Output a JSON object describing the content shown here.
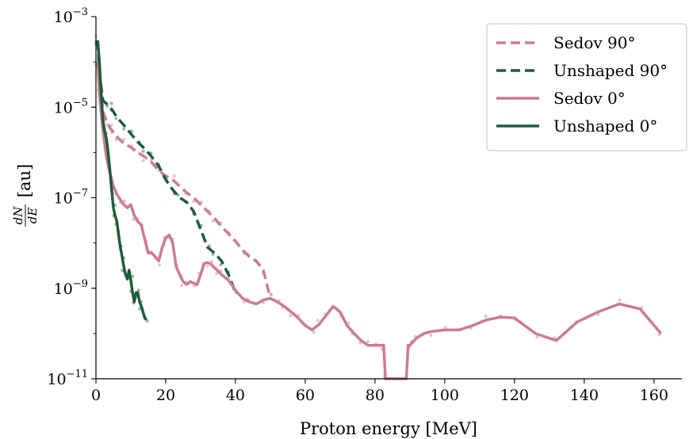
{
  "chart_data": {
    "type": "line",
    "xlabel": "Proton energy [MeV]",
    "ylabel": "dN/dE [au]",
    "ylabel_num": "dN",
    "ylabel_den": "dE",
    "ylabel_unit": "[au]",
    "xlim": [
      0,
      168
    ],
    "ylim": [
      1e-11,
      0.001
    ],
    "yscale": "log",
    "x_ticks": [
      0,
      20,
      40,
      60,
      80,
      100,
      120,
      140,
      160
    ],
    "x_tick_labels": [
      "0",
      "20",
      "40",
      "60",
      "80",
      "100",
      "120",
      "140",
      "160"
    ],
    "y_ticks": [
      1e-11,
      1e-09,
      1e-07,
      1e-05,
      0.001
    ],
    "y_tick_labels": [
      {
        "base": "10",
        "exp": "−11"
      },
      {
        "base": "10",
        "exp": "−9"
      },
      {
        "base": "10",
        "exp": "−7"
      },
      {
        "base": "10",
        "exp": "−5"
      },
      {
        "base": "10",
        "exp": "−3"
      }
    ],
    "legend_position": "top-right",
    "colors": {
      "sedov": "#cc7a93",
      "unshaped": "#1e5c3d"
    },
    "series": [
      {
        "name": "Sedov 90°",
        "style": "dashed",
        "color_key": "sedov",
        "x": [
          0.5,
          1,
          2,
          3,
          4,
          5,
          6,
          8,
          10,
          12,
          14,
          16,
          18,
          20,
          22,
          24,
          26,
          28,
          30,
          32,
          34,
          36,
          38,
          40,
          42,
          44,
          46,
          48,
          50
        ],
        "y": [
          0.0003,
          5e-05,
          8e-06,
          5e-06,
          3.5e-06,
          2.8e-06,
          2.2e-06,
          1.6e-06,
          1.3e-06,
          1e-06,
          8e-07,
          6e-07,
          4e-07,
          3e-07,
          2.5e-07,
          1.8e-07,
          1.3e-07,
          1e-07,
          7e-08,
          5e-08,
          3.5e-08,
          2.3e-08,
          1.6e-08,
          1.1e-08,
          7e-09,
          5e-09,
          4e-09,
          2.5e-09,
          6e-10
        ]
      },
      {
        "name": "Unshaped 90°",
        "style": "dashed",
        "color_key": "unshaped",
        "x": [
          0.5,
          1,
          2,
          3,
          4,
          5,
          6,
          8,
          10,
          12,
          14,
          16,
          18,
          20,
          22,
          24,
          26,
          28,
          30,
          32,
          34,
          36,
          38,
          40
        ],
        "y": [
          0.0003,
          6e-05,
          1.4e-05,
          1.2e-05,
          1e-05,
          8e-06,
          6e-06,
          4e-06,
          2.6e-06,
          1.7e-06,
          1.2e-06,
          8e-07,
          5e-07,
          2.5e-07,
          1.5e-07,
          1e-07,
          8e-08,
          5e-08,
          2e-08,
          8e-09,
          6e-09,
          4e-09,
          2e-09,
          8e-10
        ]
      },
      {
        "name": "Sedov 0°",
        "style": "solid",
        "color_key": "sedov",
        "x": [
          0.5,
          1,
          2,
          3,
          4,
          5,
          6,
          7,
          8,
          9,
          10,
          11,
          12,
          13,
          14,
          15,
          16,
          17,
          18,
          19,
          20,
          21,
          22,
          23,
          24,
          25,
          26,
          27,
          28,
          29,
          30,
          31,
          32,
          33,
          34,
          35,
          36,
          38,
          40,
          42,
          44,
          46,
          48,
          50,
          52,
          54,
          56,
          58,
          60,
          62,
          64,
          66,
          68,
          70,
          72,
          74,
          76,
          78,
          80,
          82,
          82.5,
          83,
          89,
          89.5,
          90,
          92,
          94,
          96,
          100,
          104,
          108,
          112,
          116,
          120,
          126,
          132,
          138,
          144,
          150,
          156,
          162
        ],
        "y": [
          0.0001,
          2e-05,
          3e-06,
          8e-07,
          3.5e-07,
          1.8e-07,
          1.2e-07,
          9e-08,
          7e-08,
          6e-08,
          7e-08,
          4e-08,
          3e-08,
          2.5e-08,
          1.2e-08,
          6e-09,
          6e-09,
          5e-09,
          4e-09,
          8e-09,
          1.3e-08,
          1.5e-08,
          1e-08,
          3e-09,
          2e-09,
          1.4e-09,
          1.2e-09,
          1.4e-09,
          1.3e-09,
          1.2e-09,
          2e-09,
          3.5e-09,
          3.7e-09,
          3.4e-09,
          2.8e-09,
          2.4e-09,
          2e-09,
          1.5e-09,
          9e-10,
          6e-10,
          5e-10,
          4.5e-10,
          5.5e-10,
          6e-10,
          5e-10,
          4e-10,
          3e-10,
          2.2e-10,
          1.5e-10,
          1.2e-10,
          1.6e-10,
          2.5e-10,
          4e-10,
          3e-10,
          1.5e-10,
          1e-10,
          7e-11,
          5.5e-11,
          5.5e-11,
          5.5e-11,
          5.5e-11,
          1e-11,
          1e-11,
          5.5e-11,
          5.5e-11,
          8e-11,
          1e-10,
          1.1e-10,
          1.2e-10,
          1.2e-10,
          1.5e-10,
          2e-10,
          2.3e-10,
          2.2e-10,
          1e-10,
          7e-11,
          1.8e-10,
          3e-10,
          4.5e-10,
          3.5e-10,
          1e-10
        ]
      },
      {
        "name": "Unshaped 0°",
        "style": "solid",
        "color_key": "unshaped",
        "x": [
          0.5,
          1,
          1.5,
          2,
          2.5,
          3,
          3.5,
          4,
          4.5,
          5,
          5.5,
          6,
          6.5,
          7,
          7.5,
          8,
          8.5,
          9,
          9.5,
          10,
          10.5,
          11,
          11.5,
          12,
          12.5,
          13,
          13.5,
          14,
          14.5
        ],
        "y": [
          0.0003,
          0.0001,
          2e-05,
          5e-06,
          3e-06,
          2e-06,
          1e-06,
          4e-07,
          1.5e-07,
          6e-08,
          4e-08,
          3e-08,
          1.5e-08,
          8e-09,
          5e-09,
          3e-09,
          2e-09,
          1.6e-09,
          2.5e-09,
          1.5e-09,
          8e-10,
          5e-10,
          8e-10,
          8e-10,
          5e-10,
          4e-10,
          3e-10,
          2.2e-10,
          2e-10
        ]
      }
    ]
  }
}
